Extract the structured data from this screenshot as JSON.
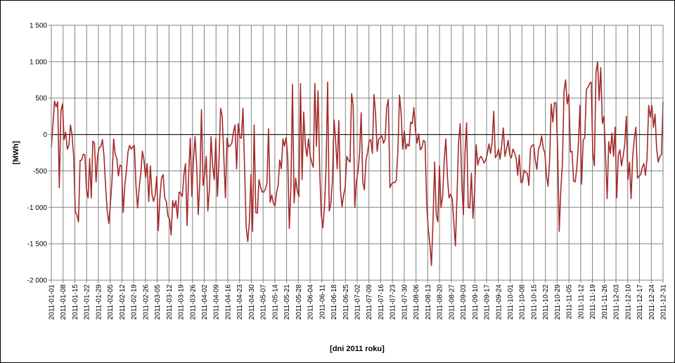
{
  "chart_data": {
    "type": "line",
    "title": "",
    "xlabel": "[dni 2011  roku]",
    "ylabel": "[MWh]",
    "ylim": [
      -2000,
      1500
    ],
    "y_ticks": [
      1500,
      1000,
      500,
      0,
      -500,
      -1000,
      -1500,
      -2000
    ],
    "y_tick_labels": [
      "1 500",
      "1 000",
      "500",
      "0",
      "-500",
      "-1 000",
      "-1 500",
      "-2 000"
    ],
    "grid": true,
    "legend": "none",
    "x_start": "2011-01-01",
    "x_end": "2011-12-31",
    "x_tick_labels": [
      "2011-01-01",
      "2011-01-08",
      "2011-01-15",
      "2011-01-22",
      "2011-01-29",
      "2011-02-05",
      "2011-02-12",
      "2011-02-19",
      "2011-02-26",
      "2011-03-05",
      "2011-03-12",
      "2011-03-19",
      "2011-03-26",
      "2011-04-02",
      "2011-04-09",
      "2011-04-16",
      "2011-04-23",
      "2011-04-30",
      "2011-05-07",
      "2011-05-14",
      "2011-05-21",
      "2011-05-28",
      "2011-06-04",
      "2011-06-11",
      "2011-06-18",
      "2011-06-25",
      "2011-07-02",
      "2011-07-09",
      "2011-07-16",
      "2011-07-23",
      "2011-07-30",
      "2011-08-06",
      "2011-08-13",
      "2011-08-20",
      "2011-08-27",
      "2011-09-03",
      "2011-09-10",
      "2011-09-17",
      "2011-09-24",
      "2011-10-01",
      "2011-10-08",
      "2011-10-15",
      "2011-10-22",
      "2011-10-29",
      "2011-11-05",
      "2011-11-12",
      "2011-11-19",
      "2011-11-26",
      "2011-12-03",
      "2011-12-10",
      "2011-12-17",
      "2011-12-24",
      "2011-12-31"
    ],
    "series": [
      {
        "color": "#a52a2a",
        "values": [
          -180,
          130,
          460,
          380,
          450,
          -730,
          320,
          420,
          -70,
          30,
          -200,
          -150,
          130,
          -10,
          -300,
          -1060,
          -1100,
          -1200,
          -360,
          -350,
          -270,
          -280,
          -750,
          -870,
          -330,
          -870,
          -90,
          -120,
          -650,
          -290,
          -180,
          -170,
          -70,
          -300,
          -720,
          -1050,
          -1220,
          -950,
          -620,
          -60,
          -270,
          -330,
          -570,
          -420,
          -440,
          -1070,
          -700,
          -500,
          -240,
          -150,
          -200,
          -170,
          -150,
          -700,
          -1010,
          -730,
          -540,
          -230,
          -350,
          -590,
          -400,
          -920,
          -430,
          -820,
          -920,
          -830,
          -580,
          -1320,
          -860,
          -600,
          -550,
          -870,
          -920,
          -1120,
          -1160,
          -1380,
          -910,
          -1000,
          -910,
          -1150,
          -790,
          -810,
          -850,
          -550,
          -400,
          -1250,
          -550,
          -50,
          -850,
          -350,
          -30,
          -420,
          -1100,
          -640,
          340,
          -700,
          -550,
          -300,
          -1050,
          -750,
          -30,
          -430,
          -620,
          -50,
          -850,
          -340,
          360,
          250,
          -310,
          -870,
          -50,
          -170,
          -150,
          -120,
          30,
          130,
          -470,
          150,
          -40,
          -50,
          360,
          -460,
          -1270,
          -1470,
          -1200,
          -550,
          -1330,
          130,
          -1070,
          -1080,
          -620,
          -720,
          -790,
          -790,
          -750,
          -670,
          80,
          -930,
          -830,
          -940,
          -980,
          -800,
          -700,
          -350,
          -470,
          -60,
          -160,
          -40,
          -310,
          -1290,
          -720,
          690,
          -940,
          -600,
          -780,
          -850,
          700,
          -620,
          310,
          -140,
          -300,
          -60,
          -280,
          -380,
          -450,
          700,
          -160,
          600,
          -470,
          -1100,
          -1280,
          -1000,
          -480,
          720,
          -1050,
          -950,
          -630,
          200,
          -80,
          -470,
          190,
          -750,
          -990,
          -830,
          -730,
          -300,
          -350,
          -380,
          560,
          400,
          -1000,
          -640,
          -510,
          -260,
          300,
          -650,
          -760,
          -350,
          -250,
          -90,
          -70,
          -260,
          550,
          290,
          -230,
          -60,
          -40,
          -20,
          -120,
          -60,
          380,
          480,
          -730,
          -680,
          -660,
          -660,
          -630,
          -210,
          540,
          290,
          -200,
          50,
          -200,
          -130,
          -160,
          170,
          150,
          370,
          50,
          -120,
          10,
          -210,
          -180,
          -80,
          -100,
          -950,
          -1300,
          -1500,
          -1800,
          -1170,
          -380,
          -1100,
          -1200,
          -430,
          -1000,
          -850,
          -350,
          -60,
          -580,
          -870,
          -820,
          -880,
          -1200,
          -1530,
          -850,
          -100,
          150,
          -680,
          -1100,
          -250,
          160,
          -1000,
          -1010,
          -530,
          -1150,
          -800,
          -140,
          -420,
          -330,
          -300,
          -340,
          -390,
          -350,
          -260,
          -130,
          -260,
          -100,
          320,
          -320,
          -280,
          -200,
          -340,
          -140,
          90,
          -300,
          -200,
          -80,
          -280,
          -320,
          -200,
          -250,
          -320,
          -560,
          -280,
          -660,
          -650,
          -490,
          -520,
          -530,
          -700,
          -190,
          -150,
          -140,
          -350,
          -480,
          -200,
          -150,
          -20,
          -190,
          -250,
          -570,
          -710,
          -350,
          420,
          170,
          440,
          430,
          -190,
          -1330,
          -750,
          -400,
          600,
          750,
          420,
          550,
          -240,
          -230,
          -640,
          -650,
          -460,
          -130,
          400,
          -680,
          -80,
          -40,
          620,
          650,
          700,
          720,
          -240,
          -430,
          850,
          1000,
          470,
          920,
          150,
          250,
          -280,
          -880,
          -100,
          -260,
          20,
          -300,
          100,
          -870,
          -280,
          -210,
          -430,
          -300,
          -140,
          250,
          -620,
          -380,
          -880,
          -300,
          -60,
          100,
          -600,
          -570,
          -550,
          -450,
          -400,
          -560,
          -320,
          400,
          240,
          400,
          100,
          280,
          -200,
          -380,
          -300,
          -280,
          450
        ]
      }
    ]
  }
}
